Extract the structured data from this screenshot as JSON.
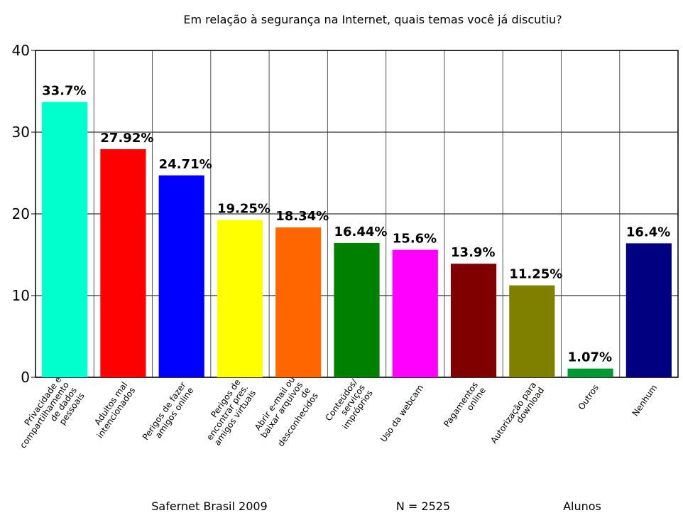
{
  "chart_data": {
    "type": "bar",
    "title": "Em relação à segurança na Internet, quais temas você já discutiu?",
    "categories": [
      "Privacidade e\ncompartilhamento\nde dados\npessoais",
      "Adultos mal\nintencionados",
      "Perigos de fazer\namigos online",
      "Perigos de\nencontrar pres.\namigos virtuais",
      "Abrir e-mail ou\nbaixar arquivos\nde\ndesconhecidos",
      "Conteúdos/\nserviços\nimpróprios",
      "Uso da webcam",
      "Pagamentos\nonline",
      "Autorização para\ndownload",
      "Outros",
      "Nenhum"
    ],
    "values": [
      33.7,
      27.92,
      24.71,
      19.25,
      18.34,
      16.44,
      15.6,
      13.9,
      11.25,
      1.07,
      16.4
    ],
    "value_labels": [
      "33.7%",
      "27.92%",
      "24.71%",
      "19.25%",
      "18.34%",
      "16.44%",
      "15.6%",
      "13.9%",
      "11.25%",
      "1.07%",
      "16.4%"
    ],
    "colors": [
      "#00ffcc",
      "#ff0000",
      "#0000ff",
      "#ffff00",
      "#ff6600",
      "#008000",
      "#ff00ff",
      "#800000",
      "#808000",
      "#009933",
      "#000080"
    ],
    "ylim": [
      0,
      40
    ],
    "yticks": [
      0,
      10,
      20,
      30,
      40
    ],
    "grid": true,
    "footer": [
      "Safernet Brasil 2009",
      "N = 2525",
      "Alunos"
    ]
  }
}
